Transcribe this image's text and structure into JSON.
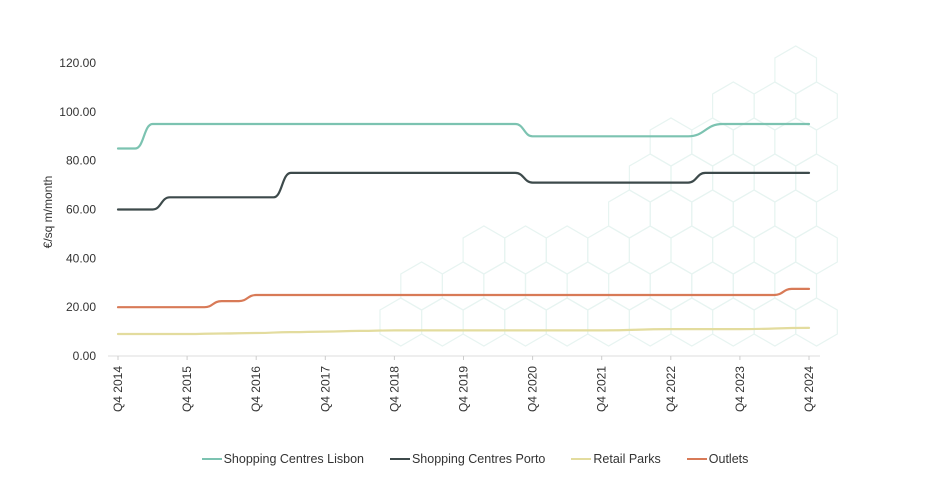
{
  "chart_data": {
    "type": "line",
    "title": "",
    "xlabel": "",
    "ylabel": "€/sq m/month",
    "ylim": [
      0,
      120
    ],
    "yticks": [
      "0.00",
      "20.00",
      "40.00",
      "60.00",
      "80.00",
      "100.00",
      "120.00"
    ],
    "categories": [
      "Q4 2014",
      "Q4 2015",
      "Q4 2016",
      "Q4 2017",
      "Q4 2018",
      "Q4 2019",
      "Q4 2020",
      "Q4 2021",
      "Q4 2022",
      "Q4 2023",
      "Q4 2024"
    ],
    "grid": false,
    "legend": "bottom",
    "series": [
      {
        "name": "Shopping Centres Lisbon",
        "color": "#7cc3b1",
        "x": [
          0,
          0.25,
          0.5,
          1,
          2,
          3,
          4,
          5,
          5.75,
          6,
          7,
          8,
          8.25,
          8.75,
          9,
          10
        ],
        "values": [
          85,
          85,
          95,
          95,
          95,
          95,
          95,
          95,
          95,
          90,
          90,
          90,
          90,
          95,
          95,
          95
        ]
      },
      {
        "name": "Shopping Centres Porto",
        "color": "#3d4a4b",
        "x": [
          0,
          0.25,
          0.5,
          0.75,
          1,
          1.75,
          2,
          2.25,
          2.5,
          3,
          4,
          5,
          5.75,
          6,
          7,
          8,
          8.25,
          8.5,
          9,
          10
        ],
        "values": [
          60,
          60,
          60,
          65,
          65,
          65,
          65,
          65,
          75,
          75,
          75,
          75,
          75,
          71,
          71,
          71,
          71,
          75,
          75,
          75
        ]
      },
      {
        "name": "Retail Parks",
        "color": "#e3dc9e",
        "x": [
          0,
          1,
          1.5,
          2,
          2.5,
          3,
          3.5,
          4,
          5,
          6,
          7,
          8,
          9,
          10
        ],
        "values": [
          9,
          9,
          9.2,
          9.4,
          9.8,
          10,
          10.3,
          10.5,
          10.5,
          10.5,
          10.5,
          11,
          11,
          11.5
        ]
      },
      {
        "name": "Outlets",
        "color": "#d87a57",
        "x": [
          0,
          1,
          1.25,
          1.5,
          1.75,
          2,
          3,
          4,
          5,
          6,
          7,
          8,
          9,
          9.5,
          9.75,
          10
        ],
        "values": [
          20,
          20,
          20,
          22.5,
          22.5,
          25,
          25,
          25,
          25,
          25,
          25,
          25,
          25,
          25,
          27.5,
          27.5
        ]
      }
    ]
  }
}
